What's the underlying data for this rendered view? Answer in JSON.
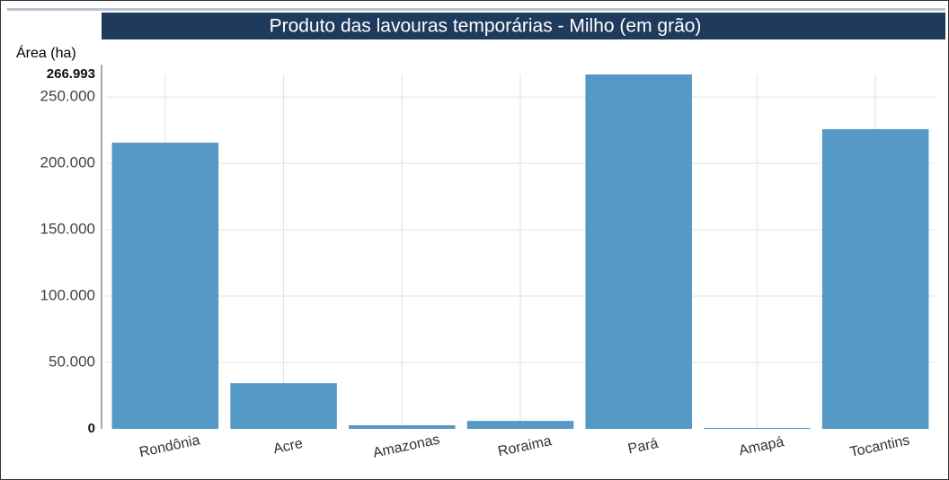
{
  "chart_data": {
    "type": "bar",
    "title": "Produto das lavouras temporárias - Milho (em grão)",
    "y_label": "Área (ha)",
    "categories": [
      "Rondônia",
      "Acre",
      "Amazonas",
      "Roraima",
      "Pará",
      "Amapá",
      "Tocantins"
    ],
    "values": [
      215600,
      34400,
      2700,
      6000,
      266993,
      700,
      225800
    ],
    "color": "#5599c7",
    "ylim": [
      0,
      266993
    ],
    "yticks": [
      0,
      {
        "value": 50000,
        "label": "50.000"
      },
      {
        "value": 100000,
        "label": "100.000"
      },
      {
        "value": 150000,
        "label": "150.000"
      },
      {
        "value": 200000,
        "label": "200.000"
      },
      {
        "value": 250000,
        "label": "250.000"
      },
      {
        "value": 266993,
        "label": "266.993"
      }
    ],
    "grid": true
  }
}
